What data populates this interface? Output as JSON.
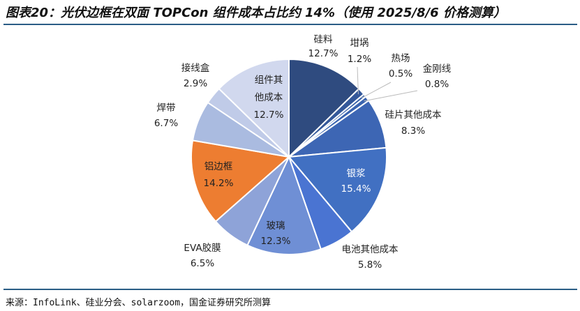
{
  "title": "图表20：光伏边框在双面 TOPCon 组件成本占比约 14%（使用 2025/8/6 价格测算）",
  "source": "来源：InfoLink、硅业分会、solarzoom，国金证券研究所测算",
  "chart_data": {
    "type": "pie",
    "title": "图表20：光伏边框在双面 TOPCon 组件成本占比约 14%（使用 2025/8/6 价格测算）",
    "start": "12 o'clock, clockwise",
    "slices": [
      {
        "name": "硅料",
        "value": 12.7,
        "label": "12.7%",
        "color": "#2f4b7f"
      },
      {
        "name": "坩埚",
        "value": 1.2,
        "label": "1.2%",
        "color": "#34589a"
      },
      {
        "name": "热场",
        "value": 0.5,
        "label": "0.5%",
        "color": "#3760a8"
      },
      {
        "name": "金刚线",
        "value": 0.8,
        "label": "0.8%",
        "color": "#3a64b0"
      },
      {
        "name": "硅片其他成本",
        "value": 8.3,
        "label": "8.3%",
        "color": "#3d66b4"
      },
      {
        "name": "银浆",
        "value": 15.4,
        "label": "15.4%",
        "color": "#4170c2"
      },
      {
        "name": "电池其他成本",
        "value": 5.8,
        "label": "5.8%",
        "color": "#4a74d2"
      },
      {
        "name": "玻璃",
        "value": 12.3,
        "label": "12.3%",
        "color": "#6f8fd5"
      },
      {
        "name": "EVA胶膜",
        "value": 6.5,
        "label": "6.5%",
        "color": "#8ea3d8"
      },
      {
        "name": "铝边框",
        "value": 14.2,
        "label": "14.2%",
        "color": "#ed7d31"
      },
      {
        "name": "焊带",
        "value": 6.7,
        "label": "6.7%",
        "color": "#aabbe0"
      },
      {
        "name": "接线盒",
        "value": 2.9,
        "label": "2.9%",
        "color": "#c0cbe8"
      },
      {
        "name": "组件其他成本",
        "value": 12.7,
        "label": "12.7%",
        "color": "#d1d8ee"
      }
    ]
  }
}
